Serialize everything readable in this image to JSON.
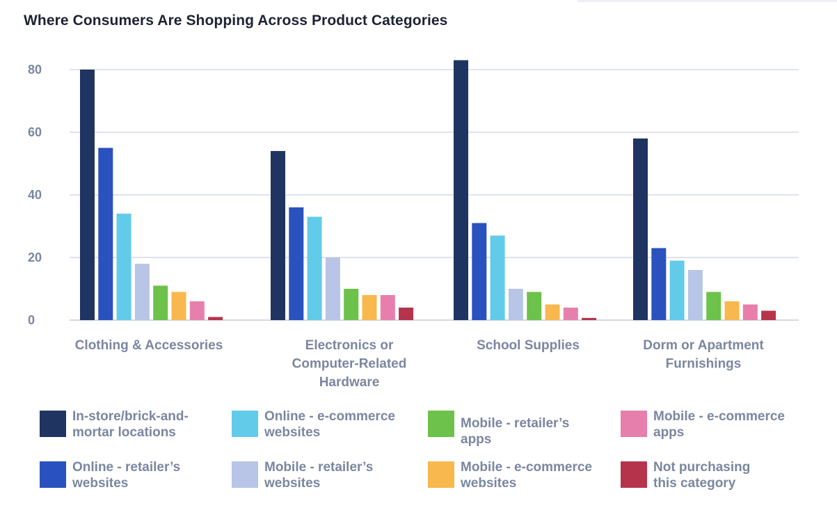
{
  "chart_data": {
    "type": "bar",
    "title": "Where Consumers Are Shopping Across Product Categories",
    "categories": [
      [
        "Clothing & Accessories"
      ],
      [
        "Electronics or",
        "Computer-Related",
        "Hardware"
      ],
      [
        "School Supplies"
      ],
      [
        "Dorm or Apartment",
        "Furnishings"
      ]
    ],
    "ylim": [
      0,
      80
    ],
    "yticks": [
      0,
      20,
      40,
      60,
      80
    ],
    "grid": true,
    "legend_position": "bottom",
    "series": [
      {
        "name": "In-store/brick-and-mortar locations",
        "label_lines": [
          "In-store/brick-and-",
          "mortar locations"
        ],
        "color": "#203461",
        "values": [
          80,
          54,
          83,
          58
        ]
      },
      {
        "name": "Online - retailer’s websites",
        "label_lines": [
          "Online - retailer’s",
          "websites"
        ],
        "color": "#2a52be",
        "values": [
          55,
          36,
          31,
          23
        ]
      },
      {
        "name": "Online -  e-commerce websites",
        "label_lines": [
          "Online -  e-commerce",
          "websites"
        ],
        "color": "#62cbea",
        "values": [
          34,
          33,
          27,
          19
        ]
      },
      {
        "name": "Mobile - retailer’s websites",
        "label_lines": [
          "Mobile - retailer’s",
          "websites"
        ],
        "color": "#b8c5e6",
        "values": [
          18,
          20,
          10,
          16
        ]
      },
      {
        "name": "Mobile - retailer’s apps",
        "label_lines": [
          "Mobile - retailer’s apps"
        ],
        "color": "#6cc24a",
        "values": [
          11,
          10,
          9,
          9
        ]
      },
      {
        "name": "Mobile - e-commerce websites",
        "label_lines": [
          "Mobile - e-commerce",
          "websites"
        ],
        "color": "#f8b84e",
        "values": [
          9,
          8,
          5,
          6
        ]
      },
      {
        "name": "Mobile - e-commerce apps",
        "label_lines": [
          "Mobile - e-commerce",
          "apps"
        ],
        "color": "#e77fac",
        "values": [
          6,
          8,
          4,
          5
        ]
      },
      {
        "name": "Not purchasing this category",
        "label_lines": [
          "Not purchasing",
          "this category"
        ],
        "color": "#b5344c",
        "values": [
          1,
          4,
          0.7,
          3
        ]
      }
    ]
  }
}
